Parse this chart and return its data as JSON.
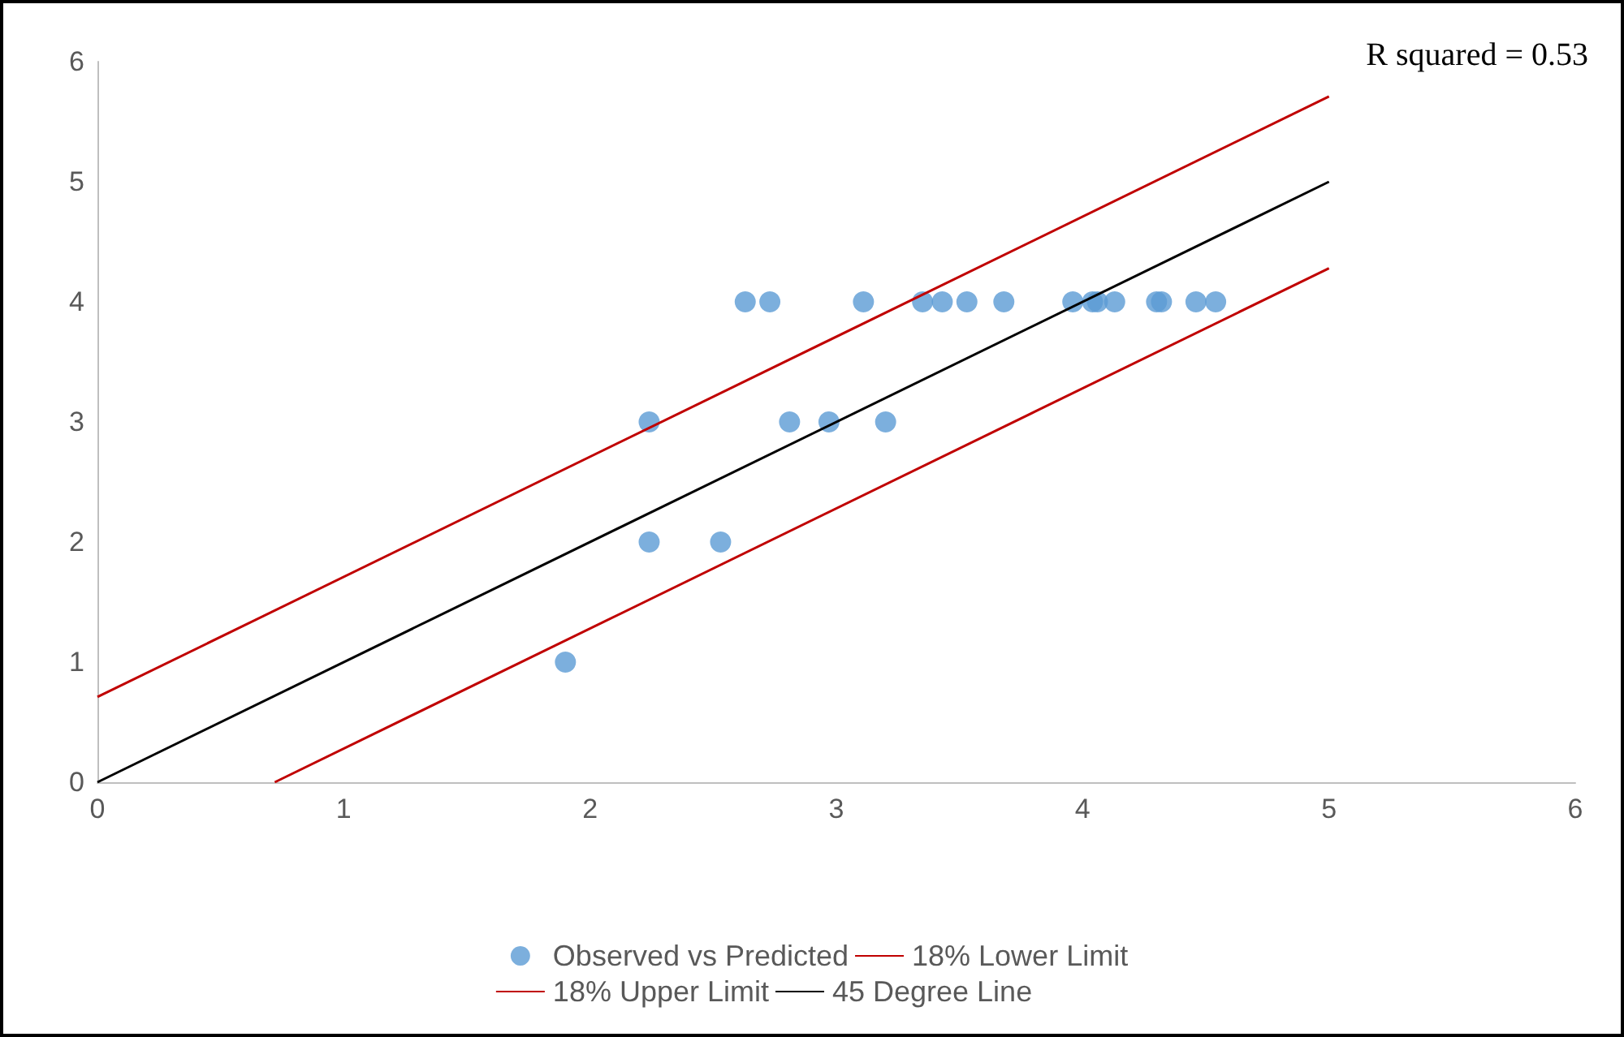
{
  "chart_data": {
    "type": "scatter",
    "annotations": [
      "R squared = 0.53"
    ],
    "xlim": [
      0,
      6
    ],
    "xticks": [
      0,
      1,
      2,
      3,
      4,
      5,
      6
    ],
    "ylim": [
      0,
      6
    ],
    "yticks": [
      0,
      1,
      2,
      3,
      4,
      5,
      6
    ],
    "grid": false,
    "legend": "bottom",
    "series": [
      {
        "name": "Observed vs Predicted",
        "color": "#5b9bd5",
        "x": [
          1.9,
          2.24,
          2.24,
          2.53,
          2.63,
          2.73,
          2.81,
          2.97,
          3.11,
          3.2,
          3.35,
          3.43,
          3.53,
          3.68,
          3.96,
          4.04,
          4.06,
          4.13,
          4.3,
          4.32,
          4.46,
          4.54
        ],
        "values": [
          1,
          3,
          2,
          2,
          4,
          4,
          3,
          3,
          4,
          3,
          4,
          4,
          4,
          4,
          4,
          4,
          4,
          4,
          4,
          4,
          4,
          4
        ]
      },
      {
        "name": "18% Lower Limit",
        "type": "line",
        "color": "#c00000",
        "x": [
          0.72,
          5
        ],
        "values": [
          0,
          4.28
        ]
      },
      {
        "name": "18% Upper Limit",
        "type": "line",
        "color": "#c00000",
        "x": [
          0,
          5
        ],
        "values": [
          0.71,
          5.71
        ]
      },
      {
        "name": "45 Degree Line",
        "type": "line",
        "color": "#000000",
        "x": [
          0,
          5
        ],
        "values": [
          0,
          5
        ]
      }
    ]
  }
}
